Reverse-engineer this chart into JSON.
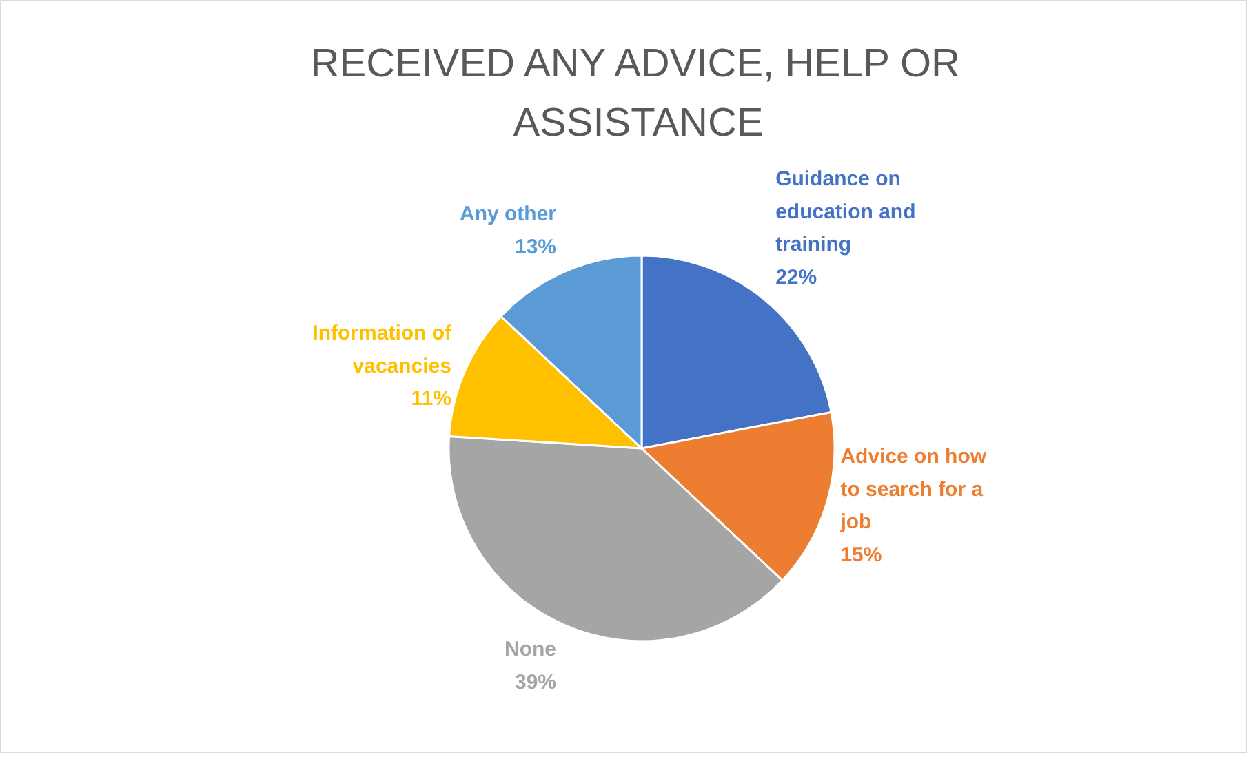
{
  "chart_data": {
    "type": "pie",
    "title": "RECEIVED ANY ADVICE, HELP OR ASSISTANCE",
    "categories": [
      "Guidance on education and training",
      "Advice on how to search for a job",
      "None",
      "Information of vacancies",
      "Any other"
    ],
    "values": [
      22,
      15,
      39,
      11,
      13
    ],
    "value_labels": [
      "22%",
      "15%",
      "39%",
      "11%",
      "13%"
    ],
    "colors": [
      "#4472c4",
      "#ed7d31",
      "#a5a5a5",
      "#ffc000",
      "#5b9bd5"
    ],
    "legend": false
  }
}
